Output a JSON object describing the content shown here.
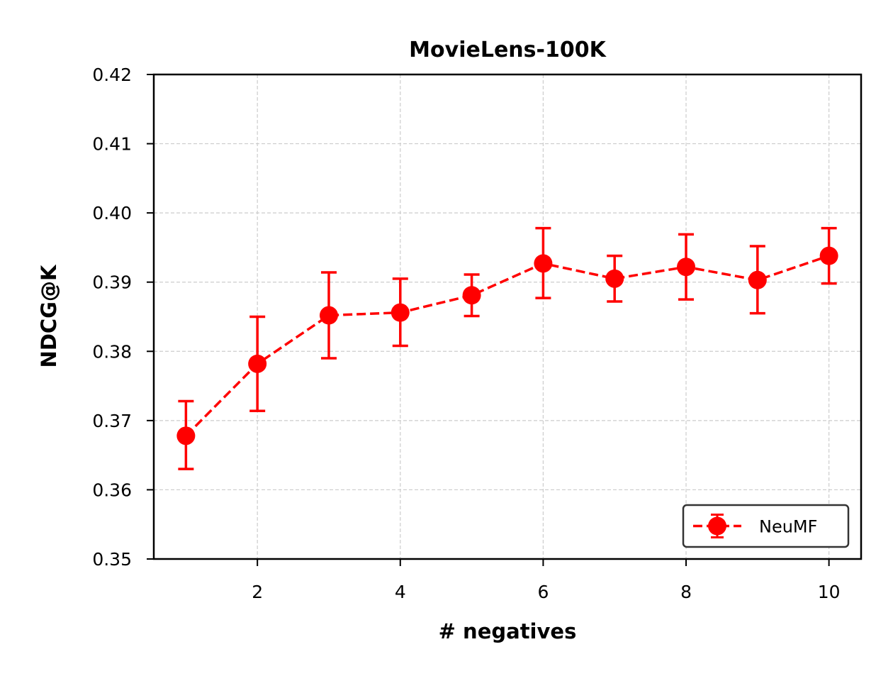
{
  "chart_data": {
    "type": "line",
    "title": "MovieLens-100K",
    "xlabel": "# negatives",
    "ylabel": "NDCG@K",
    "xlim": [
      0.55,
      10.45
    ],
    "ylim": [
      0.35,
      0.42
    ],
    "x_ticks": [
      2,
      4,
      6,
      8,
      10
    ],
    "x_tick_labels": [
      "2",
      "4",
      "6",
      "8",
      "10"
    ],
    "y_ticks": [
      0.35,
      0.36,
      0.37,
      0.38,
      0.39,
      0.4,
      0.41,
      0.42
    ],
    "y_tick_labels": [
      "0.35",
      "0.36",
      "0.37",
      "0.38",
      "0.39",
      "0.40",
      "0.41",
      "0.42"
    ],
    "grid": true,
    "legend_position": "lower-right",
    "series": [
      {
        "name": "NeuMF",
        "color": "#ff0000",
        "line_style": "dashed",
        "marker": "circle",
        "x": [
          1,
          2,
          3,
          4,
          5,
          6,
          7,
          8,
          9,
          10
        ],
        "y": [
          0.3678,
          0.3782,
          0.3852,
          0.3856,
          0.3881,
          0.3927,
          0.3905,
          0.3922,
          0.3903,
          0.3938
        ],
        "error_low": [
          0.363,
          0.3714,
          0.379,
          0.3808,
          0.3851,
          0.3877,
          0.3872,
          0.3875,
          0.3855,
          0.3898
        ],
        "error_high": [
          0.3728,
          0.385,
          0.3914,
          0.3905,
          0.3911,
          0.3978,
          0.3938,
          0.3969,
          0.3952,
          0.3978
        ]
      }
    ]
  }
}
